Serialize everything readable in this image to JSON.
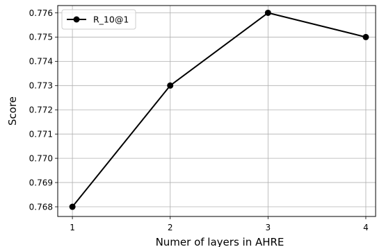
{
  "chart_data": {
    "type": "line",
    "title": "",
    "xlabel": "Numer of layers in AHRE",
    "ylabel": "Score",
    "x": [
      1,
      2,
      3,
      4
    ],
    "x_tick_labels": [
      "1",
      "2",
      "3",
      "4"
    ],
    "xlim": [
      0.85,
      4.1
    ],
    "ylim": [
      0.7676,
      0.7763
    ],
    "y_ticks": [
      0.768,
      0.769,
      0.77,
      0.771,
      0.772,
      0.773,
      0.774,
      0.775,
      0.776
    ],
    "y_tick_labels": [
      "0.768",
      "0.769",
      "0.770",
      "0.771",
      "0.772",
      "0.773",
      "0.774",
      "0.775",
      "0.776"
    ],
    "grid": true,
    "legend_position": "top-left",
    "series": [
      {
        "name": "R_10@1",
        "values": [
          0.768,
          0.773,
          0.776,
          0.775
        ],
        "color": "#000000",
        "marker": "circle"
      }
    ],
    "colors": {
      "grid": "#b0b0b0",
      "axes": "#000000",
      "legend_border": "#cccccc"
    }
  }
}
